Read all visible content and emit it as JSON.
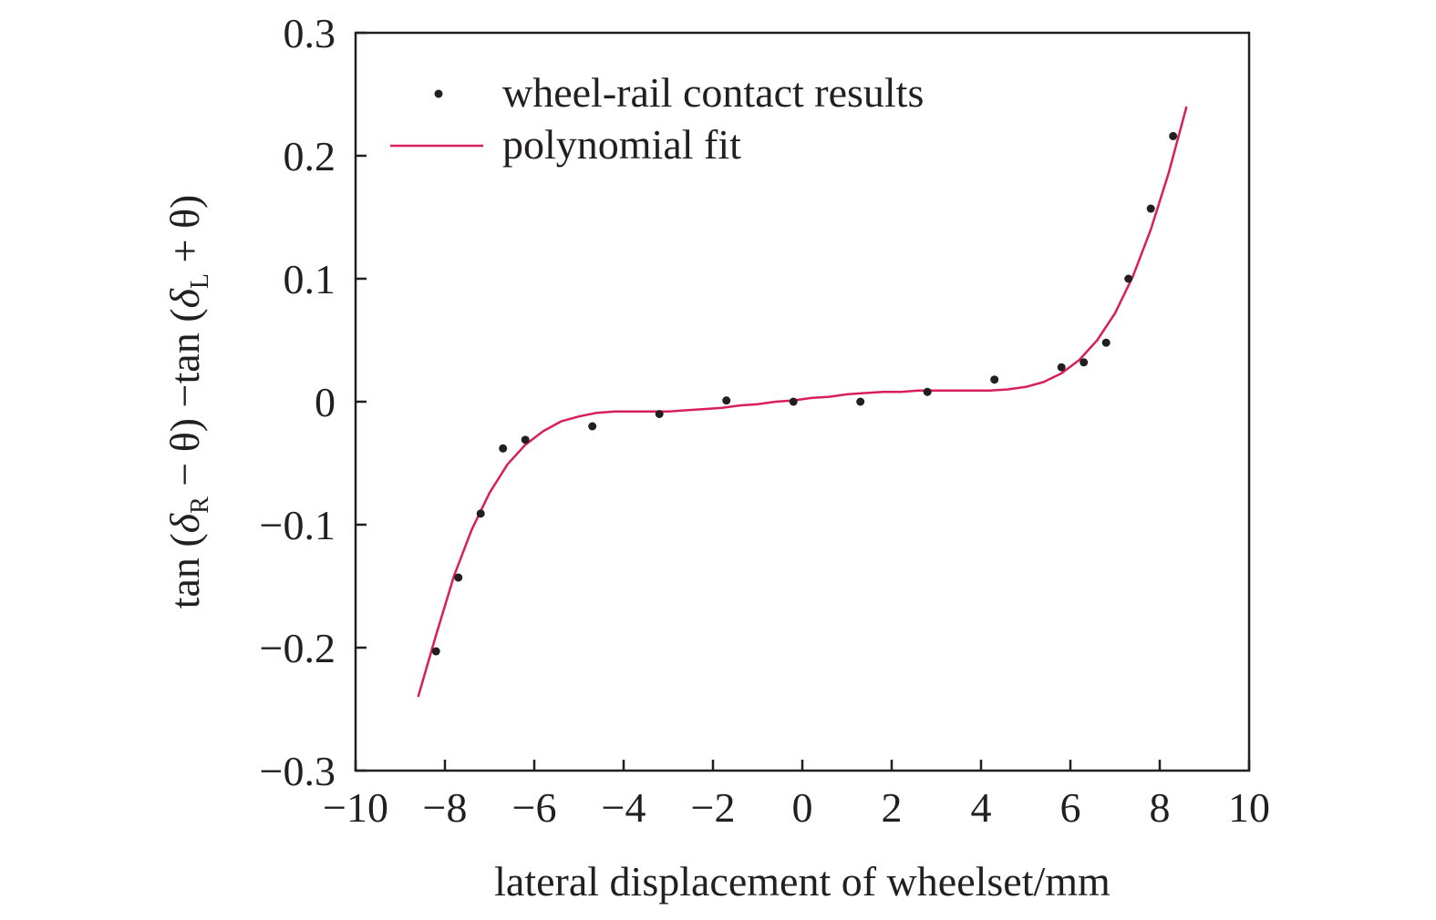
{
  "chart_data": {
    "type": "scatter",
    "xlabel": "lateral displacement of wheelset/mm",
    "ylabel_parts": {
      "tan1": "tan (",
      "delta1": "δ",
      "sub1": "R",
      "mid": " − θ) −tan (",
      "delta2": "δ",
      "sub2": "L",
      "end": " + θ)"
    },
    "xlim": [
      -10,
      10
    ],
    "ylim": [
      -0.3,
      0.3
    ],
    "x_ticks": [
      -10,
      -8,
      -6,
      -4,
      -2,
      0,
      2,
      4,
      6,
      8,
      10
    ],
    "x_tick_labels": [
      "−10",
      "−8",
      "−6",
      "−4",
      "−2",
      "0",
      "2",
      "4",
      "6",
      "8",
      "10"
    ],
    "y_ticks": [
      -0.3,
      -0.2,
      -0.1,
      0,
      0.1,
      0.2,
      0.3
    ],
    "y_tick_labels": [
      "−0.3",
      "−0.2",
      "−0.1",
      "0",
      "0.1",
      "0.2",
      "0.3"
    ],
    "grid": false,
    "legend_position": "top-left",
    "series": [
      {
        "name": "wheel-rail contact results",
        "kind": "points",
        "color": "#231f20",
        "x": [
          -8.2,
          -7.7,
          -7.2,
          -6.7,
          -6.2,
          -4.7,
          -3.2,
          -1.7,
          -0.2,
          1.3,
          2.8,
          4.3,
          5.8,
          6.3,
          6.8,
          7.3,
          7.8,
          8.3
        ],
        "y": [
          -0.203,
          -0.143,
          -0.091,
          -0.038,
          -0.031,
          -0.02,
          -0.01,
          0.001,
          0.0,
          0.0,
          0.008,
          0.018,
          0.028,
          0.032,
          0.048,
          0.1,
          0.157,
          0.216
        ]
      },
      {
        "name": "polynomial fit",
        "kind": "line",
        "color": "#d81e5b",
        "x": [
          -8.6,
          -8.2,
          -7.8,
          -7.4,
          -7.0,
          -6.6,
          -6.2,
          -5.8,
          -5.4,
          -5.0,
          -4.6,
          -4.2,
          -3.8,
          -3.4,
          -3.0,
          -2.6,
          -2.2,
          -1.8,
          -1.4,
          -1.0,
          -0.6,
          -0.2,
          0.2,
          0.6,
          1.0,
          1.4,
          1.8,
          2.2,
          2.6,
          3.0,
          3.4,
          3.8,
          4.2,
          4.6,
          5.0,
          5.4,
          5.8,
          6.2,
          6.6,
          7.0,
          7.4,
          7.8,
          8.2,
          8.6
        ],
        "y": [
          -0.24,
          -0.19,
          -0.142,
          -0.104,
          -0.074,
          -0.051,
          -0.035,
          -0.024,
          -0.016,
          -0.012,
          -0.009,
          -0.008,
          -0.008,
          -0.008,
          -0.008,
          -0.007,
          -0.006,
          -0.005,
          -0.003,
          -0.002,
          0.0,
          0.001,
          0.003,
          0.004,
          0.006,
          0.007,
          0.008,
          0.008,
          0.009,
          0.009,
          0.009,
          0.009,
          0.009,
          0.01,
          0.012,
          0.016,
          0.023,
          0.034,
          0.05,
          0.072,
          0.102,
          0.14,
          0.186,
          0.24
        ]
      }
    ]
  }
}
